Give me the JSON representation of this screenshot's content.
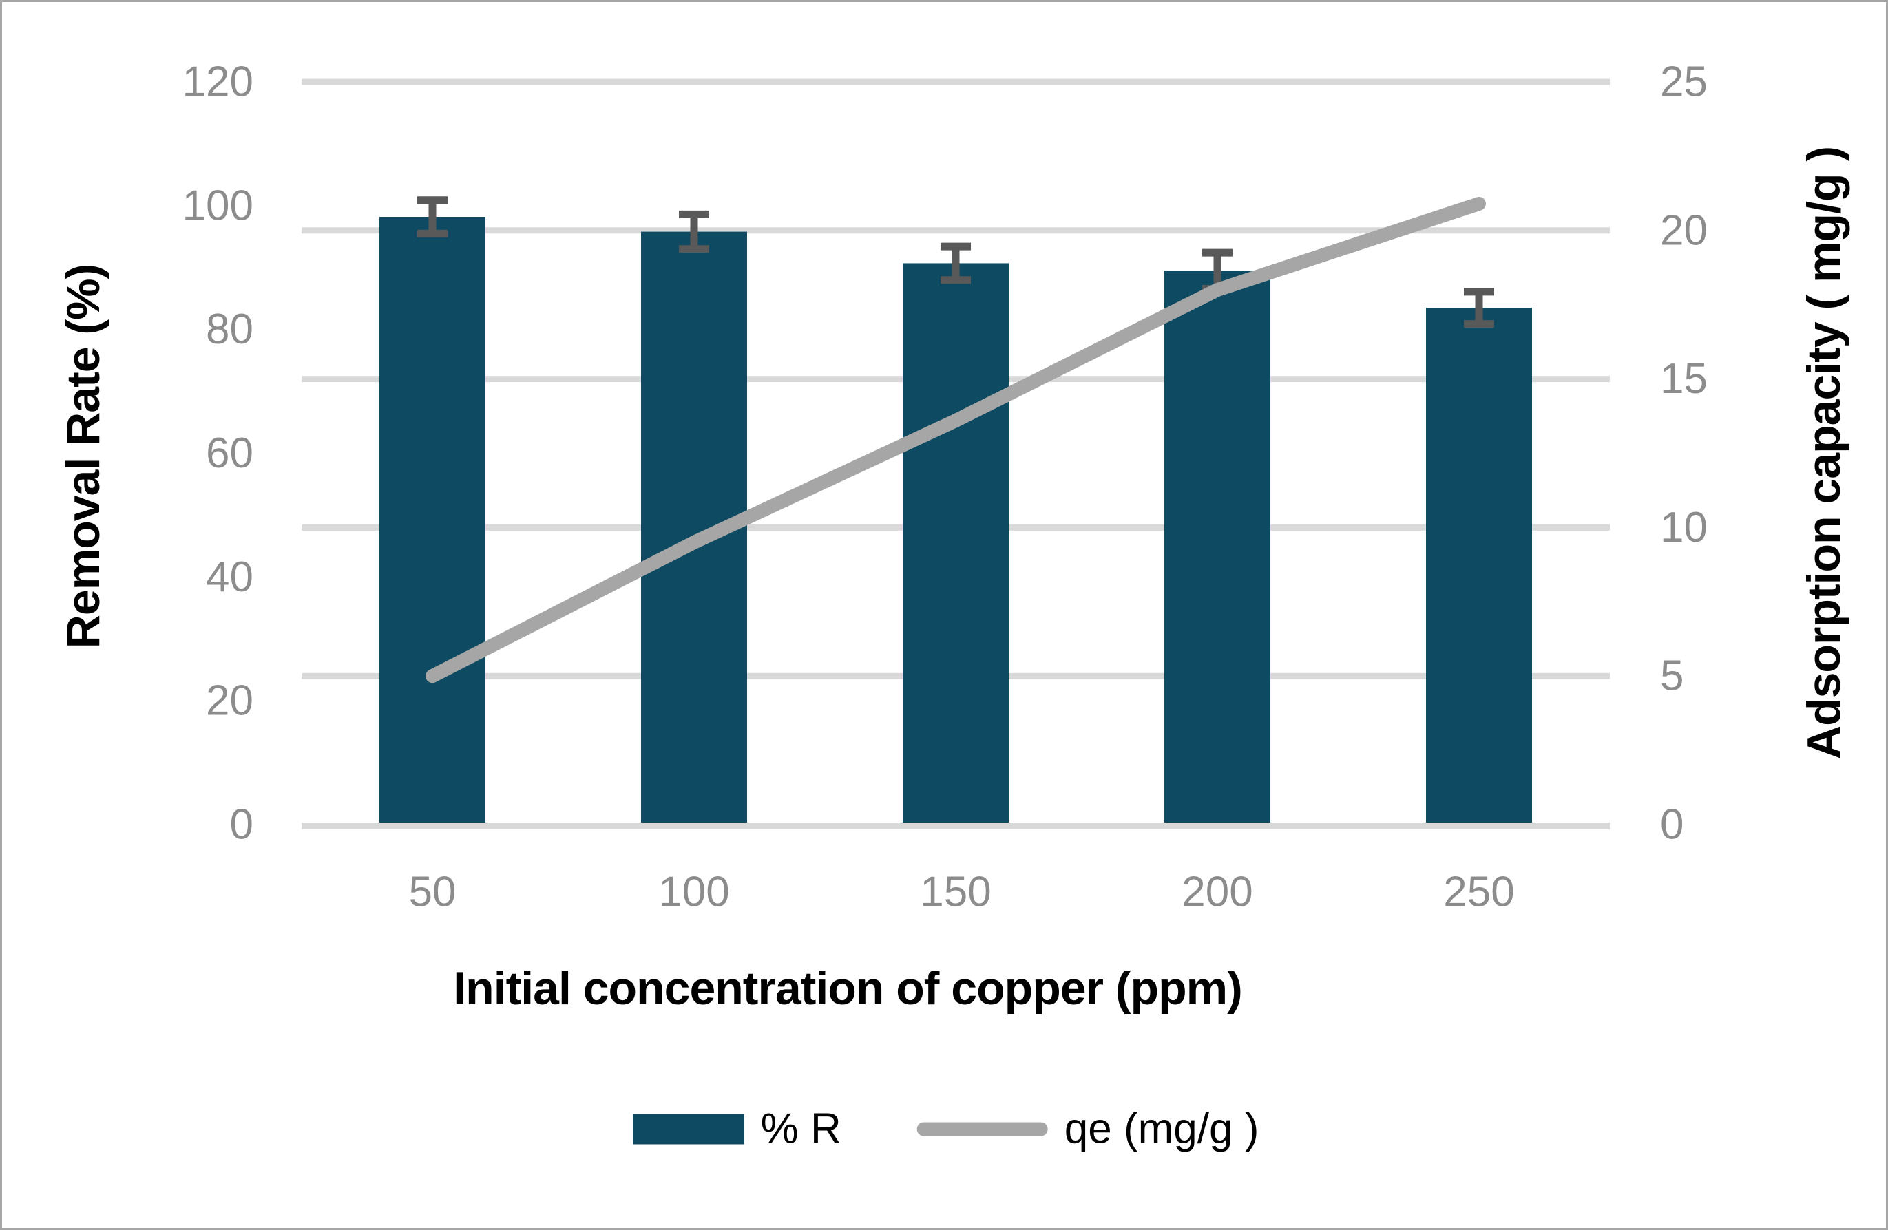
{
  "figure": {
    "background": "#FFFFFF",
    "border_color": "#A6A6A6"
  },
  "chart_data": {
    "type": "bar",
    "subtype": "bar-line-combo",
    "categories": [
      "50",
      "100",
      "150",
      "200",
      "250"
    ],
    "series": [
      {
        "name": "% R",
        "type": "bar",
        "axis": "left",
        "color": "#0E4B62",
        "values": [
          98.2,
          95.8,
          90.7,
          89.5,
          83.5
        ],
        "error_bars": [
          2.7,
          2.8,
          2.7,
          2.9,
          2.6
        ],
        "error_bar_color": "#595959"
      },
      {
        "name": "qe (mg/g )",
        "type": "line",
        "axis": "right",
        "color": "#A6A6A6",
        "values": [
          5.0,
          9.5,
          13.6,
          18.0,
          20.9
        ]
      }
    ],
    "x_axis": {
      "title": "Initial concentration of copper (ppm)",
      "tick_labels": [
        "50",
        "100",
        "150",
        "200",
        "250"
      ]
    },
    "left_axis": {
      "title": "Removal Rate (%)",
      "min": 0,
      "max": 120,
      "step": 20,
      "tick_labels": [
        "0",
        "20",
        "40",
        "60",
        "80",
        "100",
        "120"
      ]
    },
    "right_axis": {
      "title": "Adsorption capacity ( mg/g )",
      "min": 0,
      "max": 25,
      "step": 5,
      "tick_labels": [
        "0",
        "5",
        "10",
        "15",
        "20",
        "25"
      ]
    },
    "grid": {
      "show": true,
      "follows": "right_axis",
      "color": "#D9D9D9"
    },
    "tick_label_color": "#8C8C8C",
    "legend_position": "bottom",
    "legend": [
      {
        "label": "% R",
        "swatch": "bar"
      },
      {
        "label": "qe (mg/g )",
        "swatch": "line"
      }
    ]
  }
}
